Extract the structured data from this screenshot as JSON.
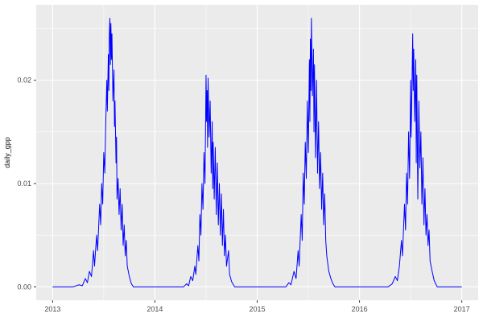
{
  "figure": {
    "background": "#ffffff",
    "panel_background": "#ebebeb",
    "grid_color": "#ffffff",
    "line_color": "#0000ff",
    "axis_text_color": "#4d4d4d",
    "axis_title_color": "#1a1a1a",
    "tick_mark_color": "#333333"
  },
  "chart_data": {
    "type": "line",
    "title": "",
    "xlabel": "",
    "ylabel": "daily_gpp",
    "legend": "none",
    "grid": true,
    "xlim": [
      2012.84,
      2017.16
    ],
    "ylim": [
      -0.0013,
      0.0273
    ],
    "x_ticks": [
      2013,
      2014,
      2015,
      2016,
      2017
    ],
    "x_tick_labels": [
      "2013",
      "2014",
      "2015",
      "2016",
      "2017"
    ],
    "x_minor_ticks": [
      2013.5,
      2014.5,
      2015.5,
      2016.5
    ],
    "y_ticks": [
      0.0,
      0.01,
      0.02
    ],
    "y_tick_labels": [
      "0.00",
      "0.01",
      "0.02"
    ],
    "y_minor_ticks": [
      0.005,
      0.015,
      0.025
    ],
    "series": [
      {
        "name": "daily_gpp",
        "points": [
          [
            2013.0,
            0
          ],
          [
            2013.2,
            0
          ],
          [
            2013.26,
            0.0002
          ],
          [
            2013.29,
            0.0001
          ],
          [
            2013.32,
            0.0008
          ],
          [
            2013.34,
            0.0004
          ],
          [
            2013.36,
            0.0015
          ],
          [
            2013.38,
            0.001
          ],
          [
            2013.4,
            0.0035
          ],
          [
            2013.41,
            0.002
          ],
          [
            2013.43,
            0.005
          ],
          [
            2013.44,
            0.0035
          ],
          [
            2013.46,
            0.008
          ],
          [
            2013.47,
            0.006
          ],
          [
            2013.48,
            0.01
          ],
          [
            2013.49,
            0.008
          ],
          [
            2013.5,
            0.013
          ],
          [
            2013.51,
            0.011
          ],
          [
            2013.52,
            0.016
          ],
          [
            2013.53,
            0.02
          ],
          [
            2013.535,
            0.017
          ],
          [
            2013.545,
            0.0225
          ],
          [
            2013.55,
            0.019
          ],
          [
            2013.555,
            0.0245
          ],
          [
            2013.56,
            0.026
          ],
          [
            2013.565,
            0.0215
          ],
          [
            2013.57,
            0.0255
          ],
          [
            2013.575,
            0.022
          ],
          [
            2013.58,
            0.0245
          ],
          [
            2013.59,
            0.018
          ],
          [
            2013.6,
            0.021
          ],
          [
            2013.605,
            0.0155
          ],
          [
            2013.61,
            0.018
          ],
          [
            2013.62,
            0.012
          ],
          [
            2013.625,
            0.0145
          ],
          [
            2013.63,
            0.0085
          ],
          [
            2013.64,
            0.0105
          ],
          [
            2013.65,
            0.007
          ],
          [
            2013.66,
            0.0095
          ],
          [
            2013.67,
            0.0055
          ],
          [
            2013.68,
            0.008
          ],
          [
            2013.69,
            0.004
          ],
          [
            2013.7,
            0.006
          ],
          [
            2013.71,
            0.003
          ],
          [
            2013.72,
            0.0045
          ],
          [
            2013.73,
            0.002
          ],
          [
            2013.75,
            0.001
          ],
          [
            2013.77,
            0.0003
          ],
          [
            2013.79,
            0
          ],
          [
            2014.28,
            0
          ],
          [
            2014.31,
            0.0003
          ],
          [
            2014.33,
            0.0001
          ],
          [
            2014.35,
            0.001
          ],
          [
            2014.37,
            0.0006
          ],
          [
            2014.39,
            0.002
          ],
          [
            2014.4,
            0.0012
          ],
          [
            2014.42,
            0.004
          ],
          [
            2014.43,
            0.0025
          ],
          [
            2014.44,
            0.007
          ],
          [
            2014.45,
            0.005
          ],
          [
            2014.46,
            0.01
          ],
          [
            2014.47,
            0.0075
          ],
          [
            2014.48,
            0.013
          ],
          [
            2014.49,
            0.01
          ],
          [
            2014.5,
            0.0205
          ],
          [
            2014.505,
            0.016
          ],
          [
            2014.51,
            0.019
          ],
          [
            2014.515,
            0.0135
          ],
          [
            2014.52,
            0.0202
          ],
          [
            2014.53,
            0.0145
          ],
          [
            2014.54,
            0.018
          ],
          [
            2014.55,
            0.011
          ],
          [
            2014.56,
            0.016
          ],
          [
            2014.565,
            0.0095
          ],
          [
            2014.57,
            0.014
          ],
          [
            2014.58,
            0.0085
          ],
          [
            2014.59,
            0.0135
          ],
          [
            2014.6,
            0.007
          ],
          [
            2014.61,
            0.012
          ],
          [
            2014.62,
            0.006
          ],
          [
            2014.63,
            0.01
          ],
          [
            2014.64,
            0.005
          ],
          [
            2014.65,
            0.009
          ],
          [
            2014.66,
            0.004
          ],
          [
            2014.67,
            0.0075
          ],
          [
            2014.68,
            0.003
          ],
          [
            2014.69,
            0.005
          ],
          [
            2014.7,
            0.002
          ],
          [
            2014.72,
            0.0035
          ],
          [
            2014.73,
            0.0012
          ],
          [
            2014.75,
            0.0005
          ],
          [
            2014.78,
            0
          ],
          [
            2015.28,
            0
          ],
          [
            2015.31,
            0.0004
          ],
          [
            2015.33,
            0.0002
          ],
          [
            2015.36,
            0.0015
          ],
          [
            2015.38,
            0.0008
          ],
          [
            2015.4,
            0.0035
          ],
          [
            2015.41,
            0.002
          ],
          [
            2015.43,
            0.007
          ],
          [
            2015.44,
            0.0045
          ],
          [
            2015.45,
            0.011
          ],
          [
            2015.46,
            0.008
          ],
          [
            2015.47,
            0.014
          ],
          [
            2015.48,
            0.0105
          ],
          [
            2015.49,
            0.018
          ],
          [
            2015.5,
            0.013
          ],
          [
            2015.51,
            0.022
          ],
          [
            2015.515,
            0.016
          ],
          [
            2015.52,
            0.024
          ],
          [
            2015.525,
            0.019
          ],
          [
            2015.53,
            0.026
          ],
          [
            2015.54,
            0.0185
          ],
          [
            2015.55,
            0.023
          ],
          [
            2015.555,
            0.015
          ],
          [
            2015.56,
            0.0215
          ],
          [
            2015.57,
            0.0125
          ],
          [
            2015.58,
            0.02
          ],
          [
            2015.59,
            0.011
          ],
          [
            2015.6,
            0.016
          ],
          [
            2015.61,
            0.0095
          ],
          [
            2015.62,
            0.013
          ],
          [
            2015.63,
            0.0075
          ],
          [
            2015.64,
            0.011
          ],
          [
            2015.65,
            0.006
          ],
          [
            2015.66,
            0.009
          ],
          [
            2015.67,
            0.0045
          ],
          [
            2015.68,
            0.003
          ],
          [
            2015.7,
            0.0015
          ],
          [
            2015.72,
            0.0008
          ],
          [
            2015.74,
            0.0003
          ],
          [
            2015.76,
            0
          ],
          [
            2016.28,
            0
          ],
          [
            2016.32,
            0.0003
          ],
          [
            2016.35,
            0.001
          ],
          [
            2016.37,
            0.0006
          ],
          [
            2016.39,
            0.002
          ],
          [
            2016.41,
            0.0045
          ],
          [
            2016.42,
            0.003
          ],
          [
            2016.44,
            0.008
          ],
          [
            2016.45,
            0.0055
          ],
          [
            2016.46,
            0.011
          ],
          [
            2016.47,
            0.008
          ],
          [
            2016.48,
            0.015
          ],
          [
            2016.49,
            0.0105
          ],
          [
            2016.5,
            0.02
          ],
          [
            2016.505,
            0.0145
          ],
          [
            2016.51,
            0.0175
          ],
          [
            2016.52,
            0.0245
          ],
          [
            2016.525,
            0.019
          ],
          [
            2016.53,
            0.023
          ],
          [
            2016.54,
            0.016
          ],
          [
            2016.55,
            0.022
          ],
          [
            2016.555,
            0.012
          ],
          [
            2016.56,
            0.0205
          ],
          [
            2016.57,
            0.0085
          ],
          [
            2016.58,
            0.018
          ],
          [
            2016.59,
            0.0115
          ],
          [
            2016.6,
            0.015
          ],
          [
            2016.61,
            0.008
          ],
          [
            2016.62,
            0.0125
          ],
          [
            2016.63,
            0.006
          ],
          [
            2016.64,
            0.0095
          ],
          [
            2016.65,
            0.005
          ],
          [
            2016.66,
            0.007
          ],
          [
            2016.67,
            0.004
          ],
          [
            2016.68,
            0.0055
          ],
          [
            2016.69,
            0.0025
          ],
          [
            2016.71,
            0.0015
          ],
          [
            2016.73,
            0.0006
          ],
          [
            2016.76,
            0
          ],
          [
            2017.0,
            0
          ]
        ]
      }
    ]
  }
}
